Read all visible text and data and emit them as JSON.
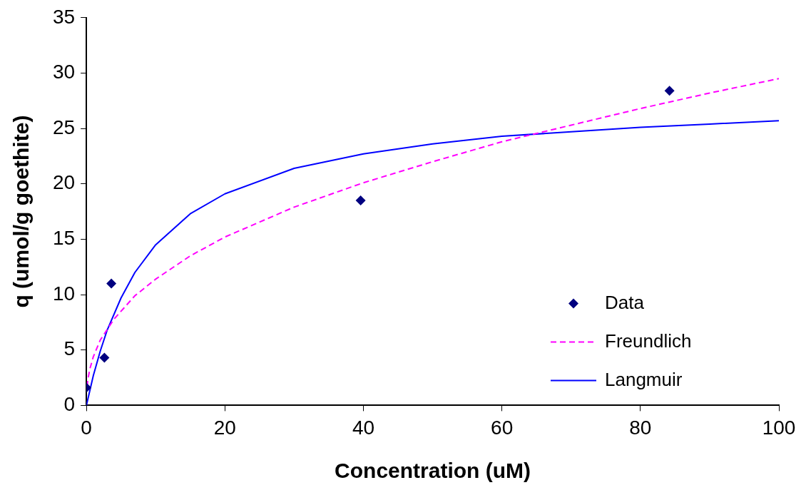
{
  "chart_data": {
    "type": "scatter",
    "xlabel": "Concentration (uM)",
    "ylabel": "q (umol/g goethite)",
    "xlim": [
      0,
      100
    ],
    "xticks": [
      0,
      20,
      40,
      60,
      80,
      100
    ],
    "ylim": [
      0,
      35
    ],
    "yticks": [
      0,
      5,
      10,
      15,
      20,
      25,
      30,
      35
    ],
    "grid": false,
    "legend": "bottom right",
    "series": [
      {
        "name": "Data",
        "type": "scatter",
        "marker": "diamond",
        "color": "#000080",
        "x": [
          0,
          2.6,
          3.6,
          39.6,
          84.2
        ],
        "values": [
          1.6,
          4.3,
          11.0,
          18.5,
          28.4
        ]
      },
      {
        "name": "Freundlich",
        "type": "line",
        "marker": "none",
        "line_style": "dashed",
        "color": "#ff00ff",
        "x": [
          0.1,
          0.2,
          0.5,
          1,
          2,
          4,
          7,
          10,
          15,
          20,
          30,
          40,
          50,
          60,
          70,
          80,
          90,
          100
        ],
        "values": [
          1.7,
          2.3,
          3.3,
          4.4,
          5.9,
          7.8,
          9.9,
          11.4,
          13.5,
          15.2,
          17.9,
          20.1,
          22.0,
          23.8,
          25.3,
          26.8,
          28.2,
          29.5
        ]
      },
      {
        "name": "Langmuir",
        "type": "line",
        "marker": "none",
        "line_style": "solid",
        "color": "#0000ff",
        "x": [
          0,
          1,
          2,
          3,
          5,
          7,
          10,
          15,
          20,
          30,
          40,
          50,
          60,
          70,
          80,
          90,
          100
        ],
        "values": [
          0,
          2.7,
          4.9,
          6.8,
          9.7,
          12.0,
          14.5,
          17.3,
          19.1,
          21.4,
          22.7,
          23.6,
          24.3,
          24.7,
          25.1,
          25.4,
          25.7
        ]
      }
    ]
  }
}
